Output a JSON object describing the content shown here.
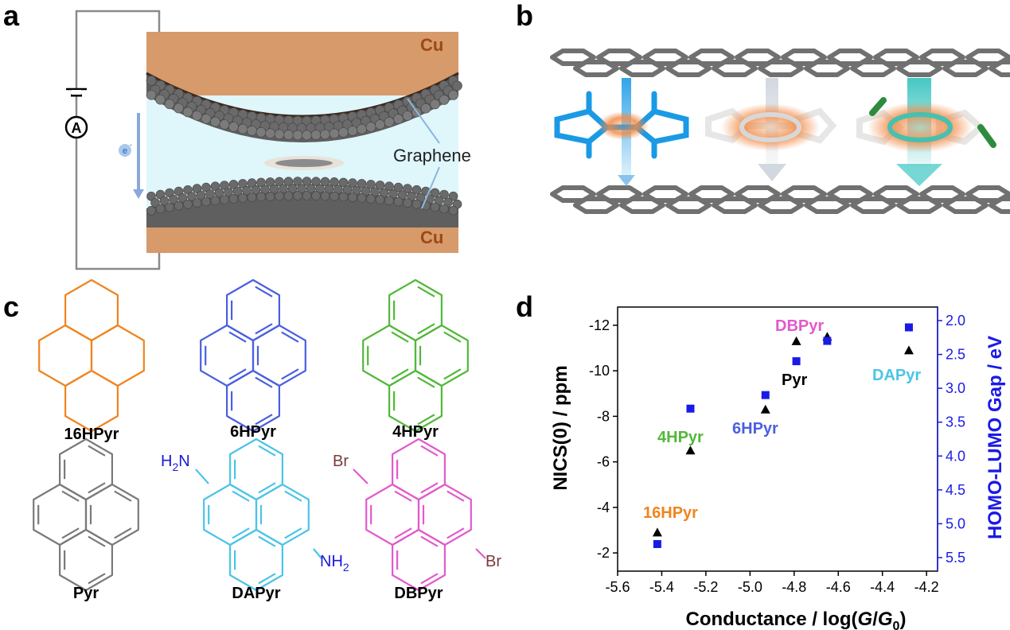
{
  "panels": {
    "a": {
      "letter": "a",
      "cu_top": "Cu",
      "cu_bottom": "Cu",
      "graphene_label": "Graphene",
      "ammeter_symbol": "A",
      "electron_label": "e",
      "electron_superscript": "-",
      "colors": {
        "copper": "#d79a6b",
        "cu_text": "#9b4a12",
        "gap": "#dff6fb",
        "atom": "#5f5f5f"
      }
    },
    "b": {
      "letter": "b",
      "colors": {
        "graphene": "#707070",
        "blue_molecule": "#1a9ae6",
        "glow": "#f18a45",
        "green": "#2e8b3d"
      }
    },
    "c": {
      "letter": "c",
      "molecules": [
        {
          "name": "16HPyr",
          "color": "#f0841f"
        },
        {
          "name": "6HPyr",
          "color": "#4a5fe0"
        },
        {
          "name": "4HPyr",
          "color": "#52b83a"
        },
        {
          "name": "Pyr",
          "color": "#7a7a7a"
        },
        {
          "name": "DAPyr",
          "color": "#4cc4e8"
        },
        {
          "name": "DBPyr",
          "color": "#e15bcc"
        }
      ],
      "substituents": {
        "amine_top_main": "H",
        "amine_top_sub": "2",
        "amine_top_end": "N",
        "amine_bottom_main": "NH",
        "amine_bottom_sub": "2",
        "bromo_top": "Br",
        "bromo_bottom": "Br"
      },
      "substituent_colors": {
        "amine": "#1a1ad6",
        "bromine": "#7a3a3a"
      }
    },
    "d": {
      "letter": "d",
      "chart_data": {
        "type": "scatter",
        "xlabel_main": "Conductance / log(",
        "xlabel_G": "G",
        "xlabel_slash": "/",
        "xlabel_G0": "G",
        "xlabel_sub": "0",
        "xlabel_end": ")",
        "ylabel_left": "NICS(0) / ppm",
        "ylabel_right": "HOMO-LUMO Gap / eV",
        "xlim": [
          -5.6,
          -4.15
        ],
        "ylim_left": [
          -1.2,
          -12.8
        ],
        "ylim_right": [
          1.8,
          5.7
        ],
        "x_ticks": [
          -5.6,
          -5.4,
          -5.2,
          -5.0,
          -4.8,
          -4.6,
          -4.4,
          -4.2
        ],
        "x_tick_labels": [
          "-5.6",
          "-5.4",
          "-5.2",
          "-5.0",
          "-4.8",
          "-4.6",
          "-4.4",
          "-4.2"
        ],
        "y_left_ticks": [
          -12,
          -10,
          -8,
          -6,
          -4,
          -2
        ],
        "y_left_tick_labels": [
          "-12",
          "-10",
          "-8",
          "-6",
          "-4",
          "-2"
        ],
        "y_right_ticks": [
          2.0,
          2.5,
          3.0,
          3.5,
          4.0,
          4.5,
          5.0,
          5.5
        ],
        "y_right_tick_labels": [
          "2.0",
          "2.5",
          "3.0",
          "3.5",
          "4.0",
          "4.5",
          "5.0",
          "5.5"
        ],
        "series": [
          {
            "marker": "triangle",
            "color": "#000000",
            "axis": "left",
            "points": [
              {
                "label": "16HPyr",
                "x": -5.42,
                "y": -2.9
              },
              {
                "label": "4HPyr",
                "x": -5.27,
                "y": -6.5
              },
              {
                "label": "6HPyr",
                "x": -4.93,
                "y": -8.3
              },
              {
                "label": "Pyr",
                "x": -4.79,
                "y": -11.3
              },
              {
                "label": "DBPyr",
                "x": -4.65,
                "y": -11.5
              },
              {
                "label": "DAPyr",
                "x": -4.28,
                "y": -10.9
              }
            ]
          },
          {
            "marker": "square",
            "color": "#1a1ae6",
            "axis": "right",
            "points": [
              {
                "label": "16HPyr",
                "x": -5.42,
                "y": 5.3
              },
              {
                "label": "4HPyr",
                "x": -5.27,
                "y": 3.3
              },
              {
                "label": "6HPyr",
                "x": -4.93,
                "y": 3.1
              },
              {
                "label": "Pyr",
                "x": -4.79,
                "y": 2.6
              },
              {
                "label": "DBPyr",
                "x": -4.65,
                "y": 2.3
              },
              {
                "label": "DAPyr",
                "x": -4.28,
                "y": 2.1
              }
            ]
          }
        ],
        "annotations": [
          {
            "text": "16HPyr",
            "color": "#f0841f"
          },
          {
            "text": "4HPyr",
            "color": "#52b83a"
          },
          {
            "text": "6HPyr",
            "color": "#4a5fe0"
          },
          {
            "text": "Pyr",
            "color": "#000000"
          },
          {
            "text": "DBPyr",
            "color": "#e15bcc"
          },
          {
            "text": "DAPyr",
            "color": "#4cc4e8"
          }
        ],
        "right_axis_color": "#1a1ae6"
      }
    }
  }
}
